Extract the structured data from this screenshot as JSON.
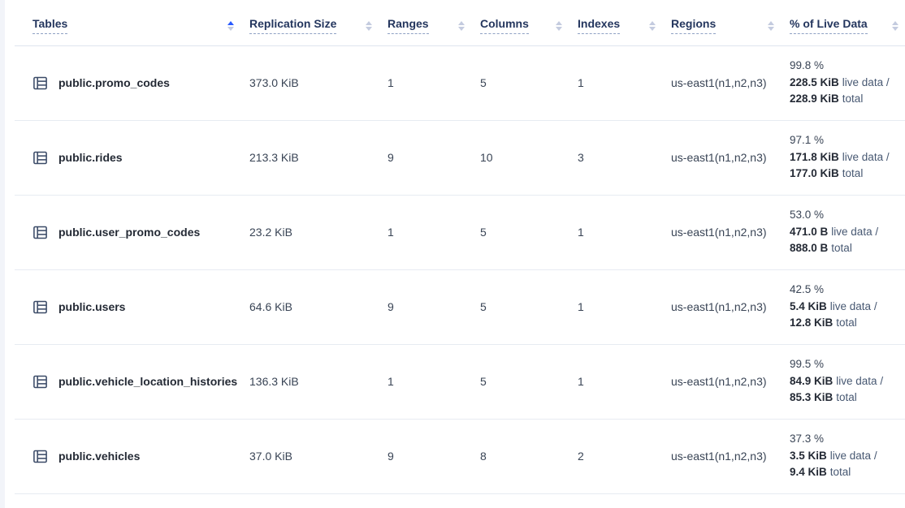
{
  "header": {
    "columns": [
      {
        "label": "Tables",
        "sorted": "asc"
      },
      {
        "label": "Replication Size",
        "sorted": "none"
      },
      {
        "label": "Ranges",
        "sorted": "none"
      },
      {
        "label": "Columns",
        "sorted": "none"
      },
      {
        "label": "Indexes",
        "sorted": "none"
      },
      {
        "label": "Regions",
        "sorted": "none"
      },
      {
        "label": "% of Live Data",
        "sorted": "none"
      }
    ]
  },
  "rows": [
    {
      "name": "public.promo_codes",
      "replication_size": "373.0 KiB",
      "ranges": "1",
      "columns": "5",
      "indexes": "1",
      "regions": "us-east1(n1,n2,n3)",
      "live_pct": "99.8 %",
      "live_data": "228.5 KiB",
      "live_suffix": "live data /",
      "total_data": "228.9 KiB",
      "total_suffix": "total"
    },
    {
      "name": "public.rides",
      "replication_size": "213.3 KiB",
      "ranges": "9",
      "columns": "10",
      "indexes": "3",
      "regions": "us-east1(n1,n2,n3)",
      "live_pct": "97.1 %",
      "live_data": "171.8 KiB",
      "live_suffix": "live data /",
      "total_data": "177.0 KiB",
      "total_suffix": "total"
    },
    {
      "name": "public.user_promo_codes",
      "replication_size": "23.2 KiB",
      "ranges": "1",
      "columns": "5",
      "indexes": "1",
      "regions": "us-east1(n1,n2,n3)",
      "live_pct": "53.0 %",
      "live_data": "471.0 B",
      "live_suffix": "live data /",
      "total_data": "888.0 B",
      "total_suffix": "total"
    },
    {
      "name": "public.users",
      "replication_size": "64.6 KiB",
      "ranges": "9",
      "columns": "5",
      "indexes": "1",
      "regions": "us-east1(n1,n2,n3)",
      "live_pct": "42.5 %",
      "live_data": "5.4 KiB",
      "live_suffix": "live data /",
      "total_data": "12.8 KiB",
      "total_suffix": "total"
    },
    {
      "name": "public.vehicle_location_histories",
      "replication_size": "136.3 KiB",
      "ranges": "1",
      "columns": "5",
      "indexes": "1",
      "regions": "us-east1(n1,n2,n3)",
      "live_pct": "99.5 %",
      "live_data": "84.9 KiB",
      "live_suffix": "live data /",
      "total_data": "85.3 KiB",
      "total_suffix": "total"
    },
    {
      "name": "public.vehicles",
      "replication_size": "37.0 KiB",
      "ranges": "9",
      "columns": "8",
      "indexes": "2",
      "regions": "us-east1(n1,n2,n3)",
      "live_pct": "37.3 %",
      "live_data": "3.5 KiB",
      "live_suffix": "live data /",
      "total_data": "9.4 KiB",
      "total_suffix": "total"
    }
  ],
  "colors": {
    "accent_blue": "#2a5bff",
    "header_text": "#24365e",
    "strong_text": "#242a35",
    "body_text": "#394455",
    "muted_text": "#475872",
    "row_border": "#e7ebf2",
    "sort_inactive": "#c4cbdf",
    "left_strip": "#f2f4f9"
  }
}
